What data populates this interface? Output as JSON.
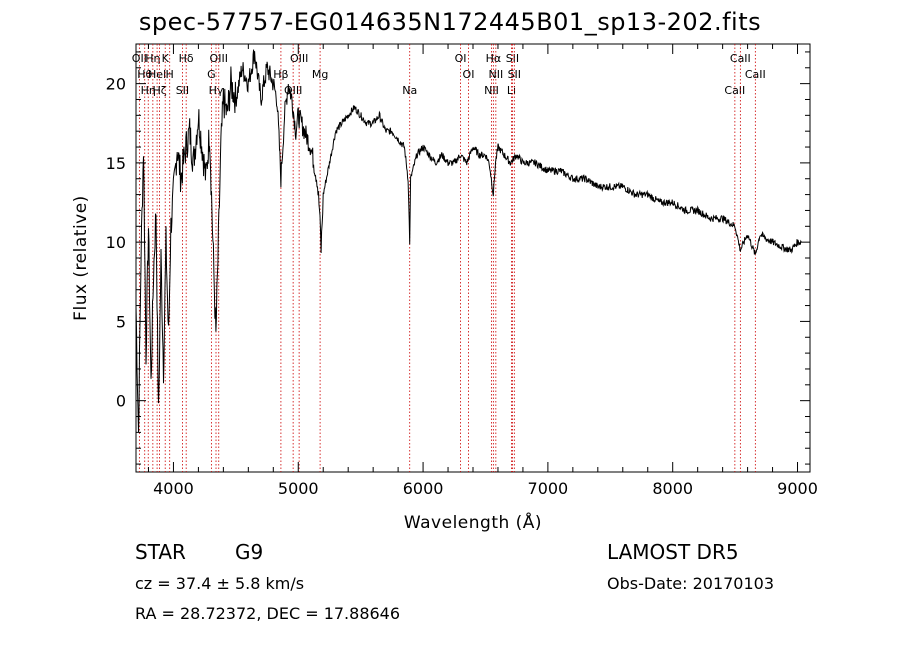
{
  "title": "spec-57757-EG014635N172445B01_sp13-202.fits",
  "footer": {
    "class_label": "STAR",
    "subclass": "G9",
    "survey": "LAMOST DR5",
    "redshift": "cz = 37.4 ± 5.8 km/s",
    "obs_date": "Obs-Date: 20170103",
    "coords": "RA =  28.72372, DEC =  17.88646"
  },
  "chart_data": {
    "type": "line",
    "title": "spec-57757-EG014635N172445B01_sp13-202.fits",
    "xlabel": "Wavelength (Å)",
    "ylabel": "Flux (relative)",
    "xlim": [
      3700,
      9100
    ],
    "ylim": [
      -4.5,
      22.5
    ],
    "xticks": [
      4000,
      5000,
      6000,
      7000,
      8000,
      9000
    ],
    "yticks": [
      0,
      5,
      10,
      15,
      20
    ],
    "grid": false,
    "series": [
      {
        "line_color": "#000000",
        "x": [
          3700,
          3720,
          3740,
          3760,
          3780,
          3800,
          3820,
          3840,
          3860,
          3880,
          3900,
          3920,
          3940,
          3960,
          3980,
          4000,
          4030,
          4060,
          4100,
          4130,
          4160,
          4200,
          4230,
          4260,
          4290,
          4320,
          4340,
          4360,
          4380,
          4400,
          4430,
          4460,
          4500,
          4550,
          4600,
          4650,
          4700,
          4750,
          4800,
          4830,
          4861,
          4890,
          4920,
          4950,
          4980,
          5000,
          5050,
          5100,
          5150,
          5170,
          5183,
          5200,
          5250,
          5300,
          5350,
          5400,
          5450,
          5500,
          5550,
          5600,
          5650,
          5700,
          5750,
          5800,
          5850,
          5880,
          5893,
          5900,
          5950,
          6000,
          6050,
          6100,
          6150,
          6200,
          6250,
          6300,
          6350,
          6400,
          6450,
          6500,
          6530,
          6563,
          6580,
          6600,
          6650,
          6700,
          6750,
          6800,
          6850,
          6900,
          7000,
          7100,
          7200,
          7300,
          7400,
          7500,
          7600,
          7700,
          7800,
          7900,
          8000,
          8100,
          8200,
          8300,
          8400,
          8500,
          8542,
          8600,
          8662,
          8700,
          8750,
          8800,
          8850,
          8900,
          8950,
          9000,
          9030
        ],
        "y": [
          6,
          -2,
          9,
          16,
          3,
          11,
          1,
          8,
          12,
          -1,
          9,
          2,
          10,
          4,
          11,
          13,
          16,
          14,
          16,
          17,
          15,
          18,
          16,
          14,
          17,
          9,
          4,
          10,
          16,
          19,
          18,
          20,
          19,
          21,
          20,
          22,
          19,
          21,
          20,
          19,
          14,
          18,
          20,
          19,
          17,
          18,
          17,
          16,
          14,
          12,
          9.5,
          13,
          15,
          17,
          17.5,
          18,
          18.5,
          18,
          17.5,
          17.5,
          18,
          17,
          17,
          16.5,
          16,
          14,
          10,
          14,
          15.5,
          16,
          15.5,
          15,
          15.5,
          15,
          15,
          15.5,
          15,
          16,
          15.5,
          15.5,
          15,
          13,
          15,
          16,
          15.5,
          15,
          15.5,
          15,
          15,
          15,
          14.5,
          14.5,
          14,
          14,
          13.5,
          13.5,
          13.5,
          13,
          13,
          12.5,
          12.5,
          12,
          12,
          11.5,
          11.5,
          11,
          9.5,
          10.5,
          9.2,
          10.5,
          10.2,
          10,
          9.8,
          9.6,
          9.5,
          10,
          10
        ]
      }
    ],
    "lines": [
      {
        "wave": 3727,
        "label": "OII"
      },
      {
        "wave": 3770,
        "label": "Hθ"
      },
      {
        "wave": 3798,
        "label": "Hη"
      },
      {
        "wave": 3835,
        "label": "Hη"
      },
      {
        "wave": 3869,
        "label": "HeI"
      },
      {
        "wave": 3889,
        "label": "Hζ"
      },
      {
        "wave": 3934,
        "label": "K"
      },
      {
        "wave": 3970,
        "label": "H"
      },
      {
        "wave": 4072,
        "label": "SII"
      },
      {
        "wave": 4102,
        "label": "Hδ"
      },
      {
        "wave": 4304,
        "label": "G"
      },
      {
        "wave": 4341,
        "label": "Hγ"
      },
      {
        "wave": 4363,
        "label": "OIII"
      },
      {
        "wave": 4861,
        "label": "Hβ"
      },
      {
        "wave": 4959,
        "label": "OIII"
      },
      {
        "wave": 5007,
        "label": "OIII"
      },
      {
        "wave": 5175,
        "label": "Mg"
      },
      {
        "wave": 5893,
        "label": "Na"
      },
      {
        "wave": 6300,
        "label": "OI"
      },
      {
        "wave": 6364,
        "label": "OI"
      },
      {
        "wave": 6548,
        "label": "NII"
      },
      {
        "wave": 6563,
        "label": "Hα"
      },
      {
        "wave": 6583,
        "label": "NII"
      },
      {
        "wave": 6708,
        "label": "Li"
      },
      {
        "wave": 6716,
        "label": "SII"
      },
      {
        "wave": 6731,
        "label": "SII"
      },
      {
        "wave": 8498,
        "label": "CaII"
      },
      {
        "wave": 8542,
        "label": "CaII"
      },
      {
        "wave": 8662,
        "label": "CaII"
      }
    ],
    "line_color": "#cc0000"
  }
}
